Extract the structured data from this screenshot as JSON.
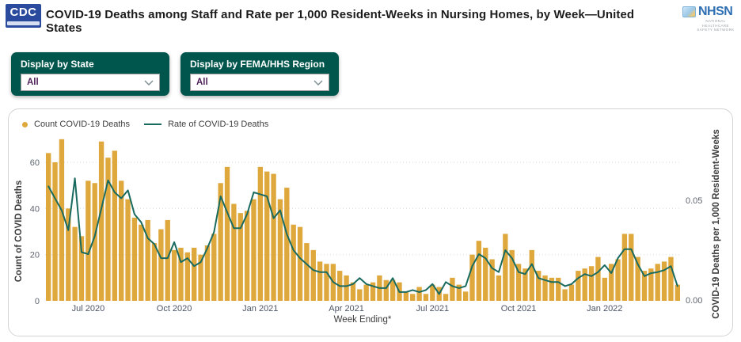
{
  "header": {
    "cdc_logo_text": "CDC",
    "title": "COVID-19 Deaths among Staff and Rate per 1,000 Resident-Weeks in Nursing Homes, by Week—United States",
    "nhsn_logo_text": "NHSN",
    "nhsn_logo_sub1": "NATIONAL HEALTHCARE",
    "nhsn_logo_sub2": "SAFETY NETWORK"
  },
  "filters": {
    "state": {
      "label": "Display by State",
      "value": "All"
    },
    "region": {
      "label": "Display by FEMA/HHS Region",
      "value": "All"
    }
  },
  "chart_data": {
    "type": "bar+line",
    "legend": [
      {
        "label": "Count COVID-19 Deaths",
        "type": "bar",
        "color": "#DFA83D"
      },
      {
        "label": "Rate of COVID-19 Deaths",
        "type": "line",
        "color": "#196A5F"
      }
    ],
    "xlabel": "Week Ending*",
    "ylabel_left": "Count of COVID Deaths",
    "ylabel_right": "COVID-19 Deaths per 1,000 Resident-Weeks",
    "y_left_ticks": [
      0,
      20,
      40,
      60
    ],
    "y_right_ticks": [
      {
        "label": "0.00",
        "value": 0
      },
      {
        "label": "0.05",
        "value": 0.05
      }
    ],
    "ylim_left": [
      0,
      73
    ],
    "ylim_right": [
      0,
      0.063
    ],
    "grid": "dotted-horizontal",
    "legend_position": "top-left",
    "x_ticks": [
      {
        "label": "Jul 2020",
        "index": 6
      },
      {
        "label": "Oct 2020",
        "index": 19
      },
      {
        "label": "Jan 2021",
        "index": 32
      },
      {
        "label": "Apr 2021",
        "index": 45
      },
      {
        "label": "Jul 2021",
        "index": 58
      },
      {
        "label": "Oct 2021",
        "index": 71
      },
      {
        "label": "Jan 2022",
        "index": 84
      }
    ],
    "series": [
      {
        "name": "Count COVID-19 Deaths",
        "type": "bar",
        "axis": "left",
        "values": [
          64,
          60,
          70,
          40,
          32,
          28,
          52,
          51,
          69,
          62,
          65,
          52,
          44,
          36,
          33,
          35,
          25,
          31,
          35,
          22,
          23,
          21,
          23,
          20,
          24,
          29,
          51,
          58,
          42,
          38,
          39,
          44,
          58,
          56,
          55,
          44,
          49,
          33,
          32,
          25,
          22,
          17,
          16,
          16,
          13,
          11,
          8,
          5,
          7,
          8,
          11,
          9,
          9,
          8,
          4,
          3,
          6,
          3,
          7,
          6,
          3,
          10,
          7,
          4,
          20,
          26,
          23,
          18,
          11,
          29,
          22,
          16,
          14,
          22,
          13,
          11,
          10,
          10,
          5,
          7,
          13,
          14,
          15,
          19,
          10,
          16,
          18,
          29,
          29,
          19,
          13,
          14,
          16,
          17,
          19,
          7
        ]
      },
      {
        "name": "Rate of COVID-19 Deaths",
        "type": "line",
        "axis": "right",
        "values": [
          0.057,
          0.051,
          0.045,
          0.035,
          0.061,
          0.024,
          0.023,
          0.032,
          0.046,
          0.06,
          0.054,
          0.051,
          0.055,
          0.043,
          0.039,
          0.031,
          0.028,
          0.021,
          0.021,
          0.029,
          0.019,
          0.021,
          0.017,
          0.019,
          0.026,
          0.034,
          0.052,
          0.044,
          0.036,
          0.036,
          0.043,
          0.054,
          0.053,
          0.052,
          0.041,
          0.045,
          0.033,
          0.025,
          0.021,
          0.018,
          0.015,
          0.014,
          0.014,
          0.009,
          0.007,
          0.007,
          0.008,
          0.011,
          0.008,
          0.007,
          0.006,
          0.006,
          0.011,
          0.004,
          0.004,
          0.005,
          0.004,
          0.005,
          0.008,
          0.003,
          0.009,
          0.007,
          0.006,
          0.007,
          0.017,
          0.023,
          0.021,
          0.016,
          0.014,
          0.025,
          0.021,
          0.014,
          0.013,
          0.018,
          0.011,
          0.01,
          0.009,
          0.009,
          0.007,
          0.008,
          0.011,
          0.013,
          0.012,
          0.014,
          0.0175,
          0.0135,
          0.021,
          0.0255,
          0.0255,
          0.018,
          0.012,
          0.0135,
          0.014,
          0.015,
          0.017,
          0.007
        ]
      }
    ]
  }
}
